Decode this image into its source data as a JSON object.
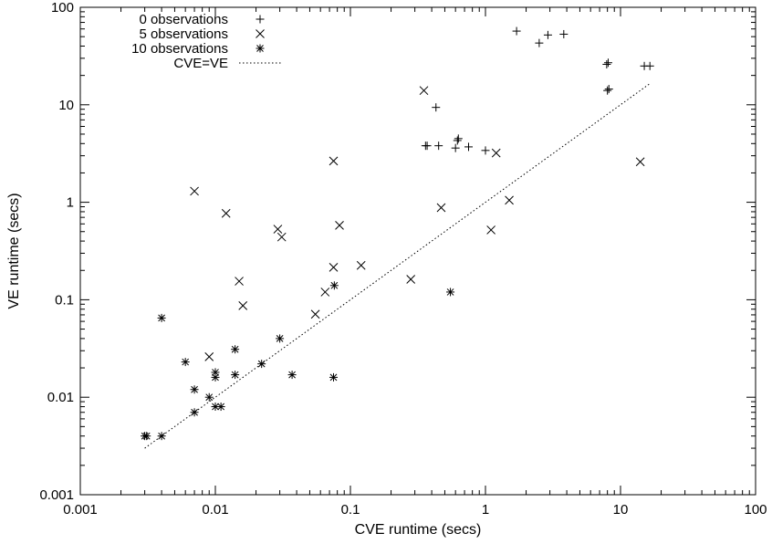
{
  "chart_data": {
    "type": "scatter",
    "title": "",
    "xlabel": "CVE runtime (secs)",
    "ylabel": "VE runtime (secs)",
    "x_scale": "log",
    "y_scale": "log",
    "xlim": [
      0.001,
      100
    ],
    "ylim": [
      0.001,
      100
    ],
    "x_ticks": [
      0.001,
      0.01,
      0.1,
      1,
      10,
      100
    ],
    "y_ticks": [
      0.001,
      0.01,
      0.1,
      1,
      10,
      100
    ],
    "x_tick_labels": [
      "0.001",
      "0.01",
      "0.1",
      "1",
      "10",
      "100"
    ],
    "y_tick_labels": [
      "0.001",
      "0.01",
      "0.1",
      "1",
      "10",
      "100"
    ],
    "grid": false,
    "legend_position": "top-left",
    "series": [
      {
        "name": "0 observations",
        "marker": "plus",
        "points": [
          [
            0.36,
            3.8
          ],
          [
            0.37,
            3.8
          ],
          [
            0.43,
            9.4
          ],
          [
            0.45,
            3.8
          ],
          [
            0.6,
            3.6
          ],
          [
            0.62,
            4.3
          ],
          [
            0.63,
            4.5
          ],
          [
            0.75,
            3.7
          ],
          [
            1.0,
            3.4
          ],
          [
            1.7,
            57
          ],
          [
            2.5,
            43
          ],
          [
            2.9,
            52
          ],
          [
            3.8,
            53
          ],
          [
            7.9,
            26
          ],
          [
            8.1,
            27
          ],
          [
            8.0,
            14
          ],
          [
            8.2,
            14.5
          ],
          [
            15,
            25
          ],
          [
            16.5,
            25
          ]
        ]
      },
      {
        "name": "5 observations",
        "marker": "cross",
        "points": [
          [
            0.007,
            1.3
          ],
          [
            0.012,
            0.77
          ],
          [
            0.009,
            0.026
          ],
          [
            0.015,
            0.155
          ],
          [
            0.016,
            0.087
          ],
          [
            0.029,
            0.53
          ],
          [
            0.031,
            0.44
          ],
          [
            0.055,
            0.071
          ],
          [
            0.065,
            0.12
          ],
          [
            0.075,
            0.215
          ],
          [
            0.075,
            2.65
          ],
          [
            0.083,
            0.58
          ],
          [
            0.12,
            0.225
          ],
          [
            0.28,
            0.162
          ],
          [
            0.35,
            14
          ],
          [
            0.47,
            0.88
          ],
          [
            1.1,
            0.52
          ],
          [
            1.2,
            3.2
          ],
          [
            1.5,
            1.05
          ],
          [
            14,
            2.6
          ]
        ]
      },
      {
        "name": "10 observations",
        "marker": "star",
        "points": [
          [
            0.003,
            0.004
          ],
          [
            0.0031,
            0.004
          ],
          [
            0.004,
            0.004
          ],
          [
            0.004,
            0.065
          ],
          [
            0.006,
            0.023
          ],
          [
            0.007,
            0.012
          ],
          [
            0.007,
            0.007
          ],
          [
            0.009,
            0.01
          ],
          [
            0.01,
            0.018
          ],
          [
            0.01,
            0.016
          ],
          [
            0.01,
            0.008
          ],
          [
            0.011,
            0.008
          ],
          [
            0.014,
            0.031
          ],
          [
            0.014,
            0.017
          ],
          [
            0.022,
            0.022
          ],
          [
            0.03,
            0.04
          ],
          [
            0.037,
            0.017
          ],
          [
            0.075,
            0.016
          ],
          [
            0.076,
            0.14
          ],
          [
            0.55,
            0.12
          ]
        ]
      },
      {
        "name": "CVE=VE",
        "marker": "dotted-line",
        "line": [
          [
            0.003,
            0.003
          ],
          [
            16.5,
            16.5
          ]
        ]
      }
    ]
  }
}
